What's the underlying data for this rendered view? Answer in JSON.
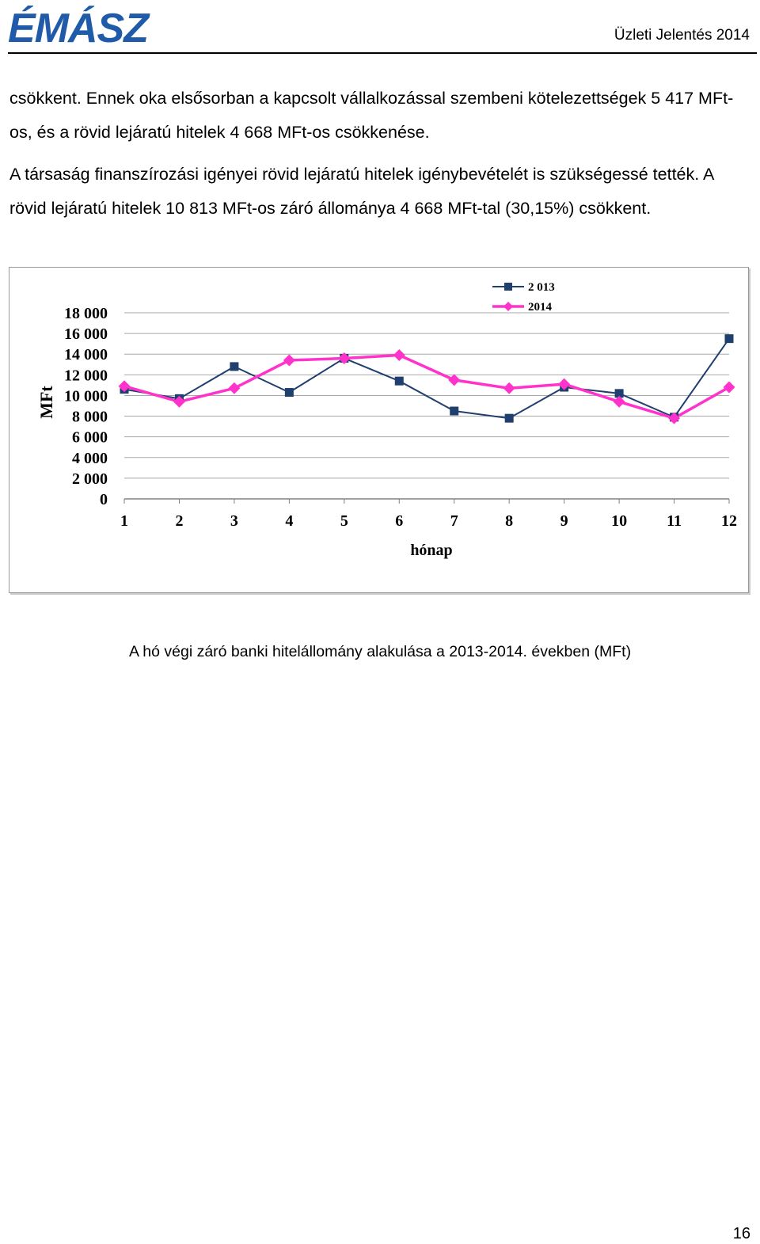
{
  "header": {
    "logo_text": "ÉMÁSZ",
    "logo_color": "#1f5ba8",
    "report_title": "Üzleti Jelentés 2014"
  },
  "body": {
    "paragraph1": "csökkent. Ennek oka elsősorban a kapcsolt vállalkozással szembeni kötelezettségek 5 417 MFt-os, és a rövid lejáratú hitelek 4 668 MFt-os csökkenése.",
    "paragraph2": "A társaság finanszírozási igényei rövid lejáratú hitelek igénybevételét is szükségessé tették. A rövid lejáratú hitelek 10 813 MFt-os záró állománya 4 668 MFt-tal (30,15%) csökkent."
  },
  "chart_data": {
    "type": "line",
    "title": "",
    "xlabel": "hónap",
    "ylabel": "MFt",
    "x": [
      1,
      2,
      3,
      4,
      5,
      6,
      7,
      8,
      9,
      10,
      11,
      12
    ],
    "ylim": [
      0,
      18000
    ],
    "yticks": [
      0,
      2000,
      4000,
      6000,
      8000,
      10000,
      12000,
      14000,
      16000,
      18000
    ],
    "ytick_labels": [
      "0",
      "2 000",
      "4 000",
      "6 000",
      "8 000",
      "10 000",
      "12 000",
      "14 000",
      "16 000",
      "18 000"
    ],
    "grid": true,
    "legend_position": "top-right",
    "series": [
      {
        "name": "2 013",
        "color": "#1f3f6f",
        "marker": "square",
        "values": [
          10600,
          9700,
          12800,
          10300,
          13600,
          11400,
          8500,
          7800,
          10800,
          10200,
          7900,
          15500
        ]
      },
      {
        "name": "2014",
        "color": "#ff33cc",
        "marker": "diamond",
        "values": [
          10900,
          9400,
          10700,
          13400,
          13600,
          13900,
          11500,
          10700,
          11100,
          9400,
          7800,
          10800
        ]
      }
    ]
  },
  "caption": "A hó végi záró banki hitelállomány alakulása a 2013-2014. években (MFt)",
  "page_number": "16"
}
